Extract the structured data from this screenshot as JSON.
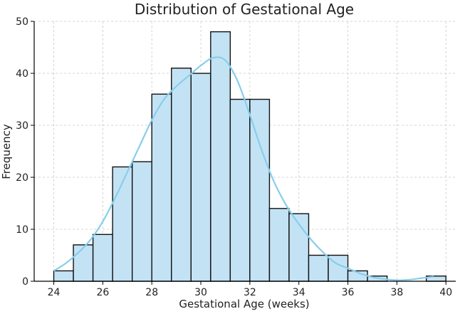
{
  "chart_data": {
    "type": "bar",
    "title": "Distribution of Gestational Age",
    "xlabel": "Gestational Age (weeks)",
    "ylabel": "Frequency",
    "xlim": [
      23.2,
      40.4
    ],
    "ylim": [
      0,
      50
    ],
    "grid": true,
    "x_ticks": [
      24,
      26,
      28,
      30,
      32,
      34,
      36,
      38,
      40
    ],
    "y_ticks": [
      0,
      10,
      20,
      30,
      40,
      50
    ],
    "bin_edges": [
      24.0,
      24.8,
      25.6,
      26.4,
      27.2,
      28.0,
      28.8,
      29.6,
      30.4,
      31.2,
      32.0,
      32.8,
      33.6,
      34.4,
      35.2,
      36.0,
      36.8,
      37.6,
      38.4,
      39.2,
      40.0
    ],
    "values": [
      2,
      7,
      9,
      22,
      23,
      36,
      41,
      40,
      48,
      35,
      35,
      14,
      13,
      5,
      5,
      2,
      1,
      0,
      0,
      1
    ],
    "kde": {
      "x": [
        24.0,
        24.5,
        25.0,
        25.5,
        26.0,
        26.5,
        27.0,
        27.5,
        28.0,
        28.5,
        29.0,
        29.5,
        30.0,
        30.5,
        31.0,
        31.5,
        32.0,
        32.5,
        33.0,
        33.5,
        34.0,
        34.5,
        35.0,
        35.5,
        36.0,
        36.5,
        37.0,
        37.5,
        38.0,
        38.5,
        39.0,
        39.5
      ],
      "y": [
        2,
        3.5,
        5.5,
        8,
        11.5,
        16,
        21,
        26,
        31,
        35,
        37.5,
        39.5,
        41.5,
        43,
        42.5,
        38.5,
        32,
        25,
        19,
        14.5,
        11,
        8,
        5.5,
        3.5,
        2.5,
        1.5,
        0.8,
        0.4,
        0.2,
        0.3,
        0.6,
        0.9
      ]
    },
    "colors": {
      "bar_fill": "#c3e3f5",
      "bar_stroke": "#111111",
      "kde_line": "#87ceeb",
      "grid": "#c8c8c8",
      "axis": "#000000"
    }
  }
}
